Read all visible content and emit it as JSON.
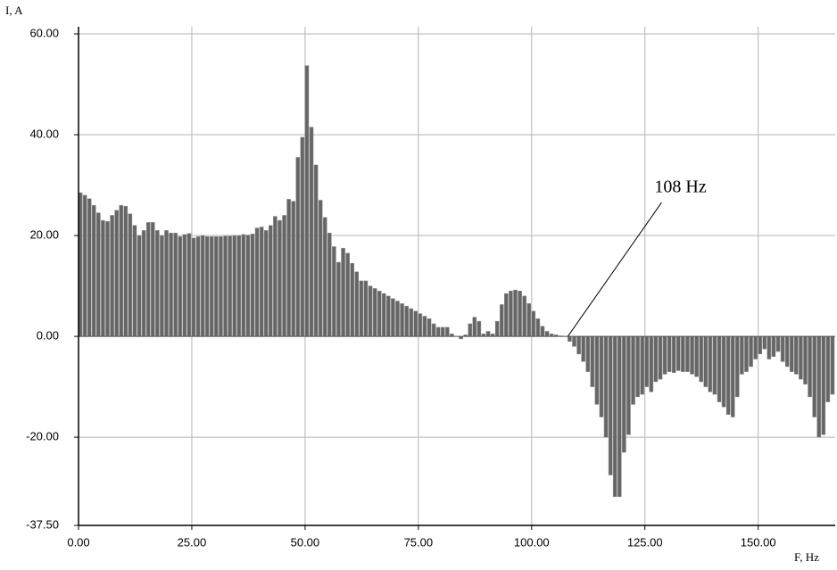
{
  "chart_data": {
    "type": "bar",
    "y_label": "I, A",
    "x_label": "F, Hz",
    "x": [
      0,
      1,
      2,
      3,
      4,
      5,
      6,
      7,
      8,
      9,
      10,
      11,
      12,
      13,
      14,
      15,
      16,
      17,
      18,
      19,
      20,
      21,
      22,
      23,
      24,
      25,
      26,
      27,
      28,
      29,
      30,
      31,
      32,
      33,
      34,
      35,
      36,
      37,
      38,
      39,
      40,
      41,
      42,
      43,
      44,
      45,
      46,
      47,
      48,
      49,
      50,
      51,
      52,
      53,
      54,
      55,
      56,
      57,
      58,
      59,
      60,
      61,
      62,
      63,
      64,
      65,
      66,
      67,
      68,
      69,
      70,
      71,
      72,
      73,
      74,
      75,
      76,
      77,
      78,
      79,
      80,
      81,
      82,
      83,
      84,
      85,
      86,
      87,
      88,
      89,
      90,
      91,
      92,
      93,
      94,
      95,
      96,
      97,
      98,
      99,
      100,
      101,
      102,
      103,
      104,
      105,
      106,
      107,
      108,
      109,
      110,
      111,
      112,
      113,
      114,
      115,
      116,
      117,
      118,
      119,
      120,
      121,
      122,
      123,
      124,
      125,
      126,
      127,
      128,
      129,
      130,
      131,
      132,
      133,
      134,
      135,
      136,
      137,
      138,
      139,
      140,
      141,
      142,
      143,
      144,
      145,
      146,
      147,
      148,
      149,
      150,
      151,
      152,
      153,
      154,
      155,
      156,
      157,
      158,
      159,
      160,
      161,
      162,
      163,
      164,
      165,
      166
    ],
    "values": [
      28.5,
      28,
      27.3,
      26,
      24.5,
      23,
      22.8,
      24,
      25,
      26,
      25.8,
      24.3,
      22,
      20,
      21,
      22.6,
      22.6,
      21,
      20,
      21,
      20.5,
      20.5,
      19.8,
      20.2,
      20.4,
      19.5,
      19.8,
      20,
      19.8,
      19.8,
      19.8,
      19.8,
      19.9,
      19.9,
      20,
      20,
      20.2,
      20.1,
      20.3,
      21.5,
      21.7,
      21,
      22,
      23.8,
      23,
      24,
      27.2,
      26.8,
      35.5,
      39.5,
      53.7,
      41.5,
      34,
      27,
      23.6,
      20.5,
      17.8,
      14.7,
      17.5,
      16.5,
      14.5,
      12.8,
      11,
      11,
      10,
      9.5,
      9,
      8.5,
      8,
      7.5,
      7,
      6.5,
      6,
      5.5,
      5,
      4.5,
      4,
      3.5,
      2.5,
      1.8,
      1.8,
      1.8,
      0.5,
      0,
      -0.5,
      0.3,
      2.5,
      3.8,
      3,
      0.5,
      1,
      0.5,
      3,
      6.3,
      8.5,
      9,
      9.2,
      9,
      8,
      6.5,
      5,
      3.5,
      2,
      1,
      0.5,
      0.3,
      0.1,
      0,
      -1,
      -2,
      -3.5,
      -5,
      -7,
      -10,
      -13.5,
      -16,
      -20,
      -27.5,
      -31.8,
      -31.8,
      -23,
      -19.5,
      -13.5,
      -12,
      -11.5,
      -10,
      -11,
      -9,
      -8.5,
      -7.5,
      -7,
      -7.2,
      -6.8,
      -7,
      -7,
      -7.5,
      -8,
      -9,
      -10,
      -11,
      -11.5,
      -13,
      -14,
      -15.5,
      -16,
      -12,
      -7.5,
      -7,
      -6,
      -4.5,
      -3.5,
      -2.5,
      -4.5,
      -4,
      -3,
      -5,
      -6,
      -7,
      -7.5,
      -8.5,
      -9.5,
      -12,
      -16,
      -20,
      -19.5,
      -13,
      -11.5
    ],
    "color": "#666666",
    "xlim": [
      0,
      167
    ],
    "ylim": [
      -37.5,
      60
    ],
    "xticks": [
      {
        "value": 0,
        "label": "0.00"
      },
      {
        "value": 25,
        "label": "25.00"
      },
      {
        "value": 50,
        "label": "50.00"
      },
      {
        "value": 75,
        "label": "75.00"
      },
      {
        "value": 100,
        "label": "100.00"
      },
      {
        "value": 125,
        "label": "125.00"
      },
      {
        "value": 150,
        "label": "150.00"
      }
    ],
    "yticks": [
      {
        "value": -37.5,
        "label": "-37.50"
      },
      {
        "value": -20,
        "label": "-20.00"
      },
      {
        "value": 0,
        "label": "0.00"
      },
      {
        "value": 20,
        "label": "20.00"
      },
      {
        "value": 40,
        "label": "40.00"
      },
      {
        "value": 60,
        "label": "60.00"
      }
    ],
    "grid": true,
    "annotation": {
      "text": "108 Hz",
      "x": 108,
      "y": 0
    }
  }
}
